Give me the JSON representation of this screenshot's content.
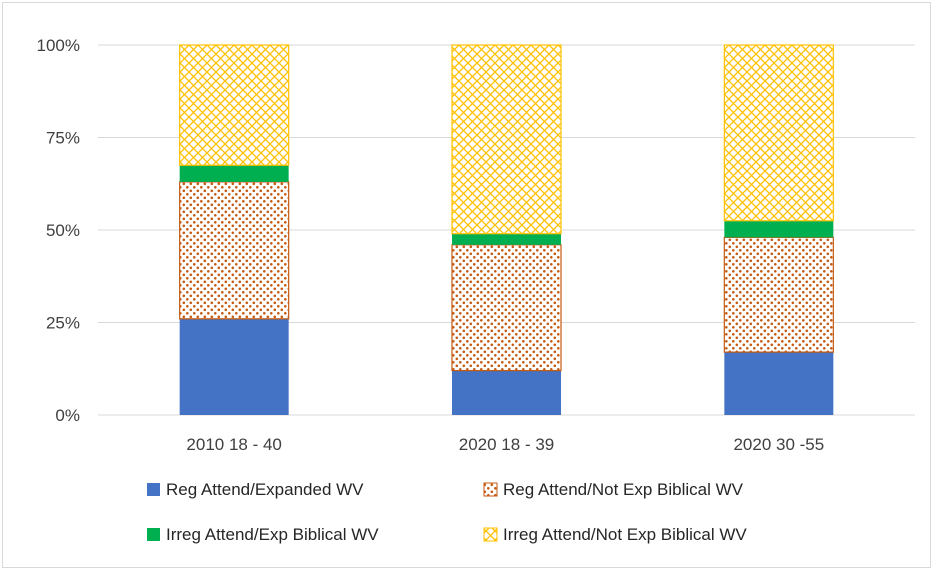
{
  "chart_data": {
    "type": "bar",
    "stacked": true,
    "categories": [
      "2010 18 - 40",
      "2020 18 - 39",
      "2020 30 -55"
    ],
    "series": [
      {
        "name": "Reg Attend/Expanded WV",
        "values": [
          26,
          12,
          17
        ],
        "color": "#4472c4",
        "fill": "solid"
      },
      {
        "name": "Reg Attend/Not Exp Biblical WV",
        "values": [
          37,
          34,
          31
        ],
        "color": "#c55a11",
        "fill": "dots"
      },
      {
        "name": "Irreg Attend/Exp Biblical WV",
        "values": [
          4.5,
          3,
          4.5
        ],
        "color": "#00b050",
        "fill": "solid"
      },
      {
        "name": "Irreg Attend/Not Exp Biblical WV",
        "values": [
          32.5,
          51,
          47.5
        ],
        "color": "#ffc000",
        "fill": "crosshatch"
      }
    ],
    "yticks": [
      "0%",
      "25%",
      "50%",
      "75%",
      "100%"
    ],
    "ylim": [
      0,
      100
    ],
    "title": "",
    "xlabel": "",
    "ylabel": "",
    "grid": true,
    "legend_position": "bottom"
  }
}
